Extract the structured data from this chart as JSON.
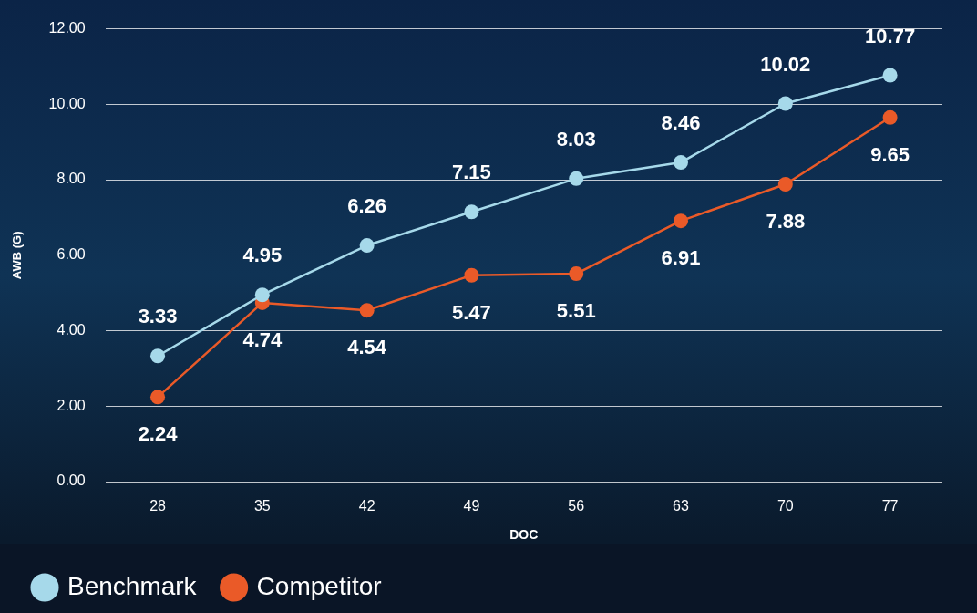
{
  "chart_data": {
    "type": "line",
    "xlabel": "DOC",
    "ylabel": "AWB (G)",
    "categories": [
      "28",
      "35",
      "42",
      "49",
      "56",
      "63",
      "70",
      "77"
    ],
    "series": [
      {
        "name": "Benchmark",
        "color": "#a6d9ea",
        "values": [
          3.33,
          4.95,
          6.26,
          7.15,
          8.03,
          8.46,
          10.02,
          10.77
        ]
      },
      {
        "name": "Competitor",
        "color": "#ea5a28",
        "values": [
          2.24,
          4.74,
          4.54,
          5.47,
          5.51,
          6.91,
          7.88,
          9.65
        ]
      }
    ],
    "ylim": [
      0,
      12
    ],
    "yticks": [
      {
        "value": 0,
        "label": "0.00"
      },
      {
        "value": 2,
        "label": "2.00"
      },
      {
        "value": 4,
        "label": "4.00"
      },
      {
        "value": 6,
        "label": "6.00"
      },
      {
        "value": 8,
        "label": "8.00"
      },
      {
        "value": 10,
        "label": "10.00"
      },
      {
        "value": 12,
        "label": "12.00"
      }
    ],
    "grid": "y",
    "legend": "bottom left",
    "marker": "circle",
    "line_style": "solid",
    "data_labels": true
  }
}
